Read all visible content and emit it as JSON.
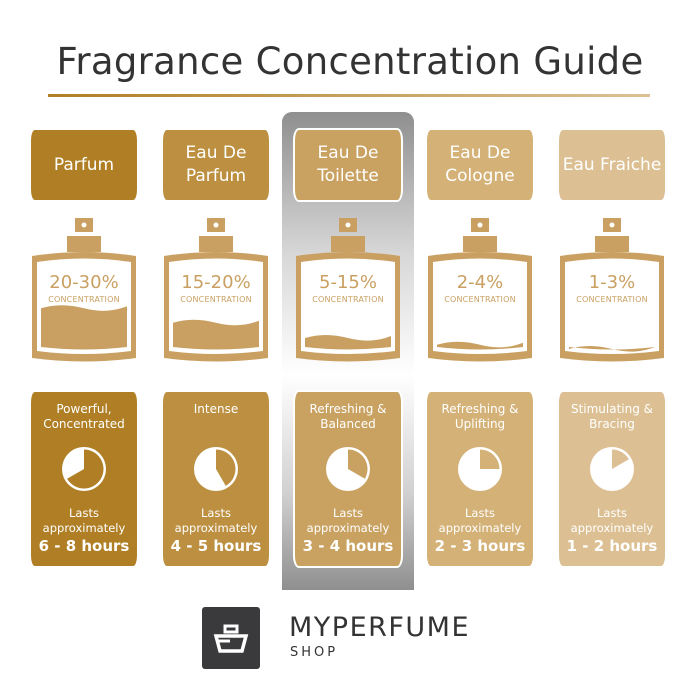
{
  "title": "Fragrance Concentration Guide",
  "bottle_color": "#c9a062",
  "columns": [
    {
      "name": "Parfum",
      "color": "#b07f25",
      "percent": "20-30%",
      "concentration_label": "CONCENTRATION",
      "fill_level": 0.55,
      "description": "Powerful, Concentrated",
      "lasts_label": "Lasts approximately",
      "hours": "6 - 8 hours",
      "clock_hours": 8,
      "highlighted": false
    },
    {
      "name": "Eau De Parfum",
      "color": "#bc9040",
      "percent": "15-20%",
      "concentration_label": "CONCENTRATION",
      "fill_level": 0.38,
      "description": "Intense",
      "lasts_label": "Lasts approximately",
      "hours": "4 - 5 hours",
      "clock_hours": 5,
      "highlighted": false
    },
    {
      "name": "Eau De Toilette",
      "color": "#c9a262",
      "percent": "5-15%",
      "concentration_label": "CONCENTRATION",
      "fill_level": 0.2,
      "description": "Refreshing & Balanced",
      "lasts_label": "Lasts approximately",
      "hours": "3 - 4 hours",
      "clock_hours": 4,
      "highlighted": true
    },
    {
      "name": "Eau De Cologne",
      "color": "#d4b177",
      "percent": "2-4%",
      "concentration_label": "CONCENTRATION",
      "fill_level": 0.12,
      "description": "Refreshing & Uplifting",
      "lasts_label": "Lasts approximately",
      "hours": "2 - 3 hours",
      "clock_hours": 3,
      "highlighted": false
    },
    {
      "name": "Eau Fraiche",
      "color": "#dcc093",
      "percent": "1-3%",
      "concentration_label": "CONCENTRATION",
      "fill_level": 0.07,
      "description": "Stimulating & Bracing",
      "lasts_label": "Lasts approximately",
      "hours": "1 - 2 hours",
      "clock_hours": 2,
      "highlighted": false
    }
  ],
  "logo": {
    "brand": "MYPERFUME",
    "sub": "SHOP",
    "color": "#3a3a3c"
  }
}
